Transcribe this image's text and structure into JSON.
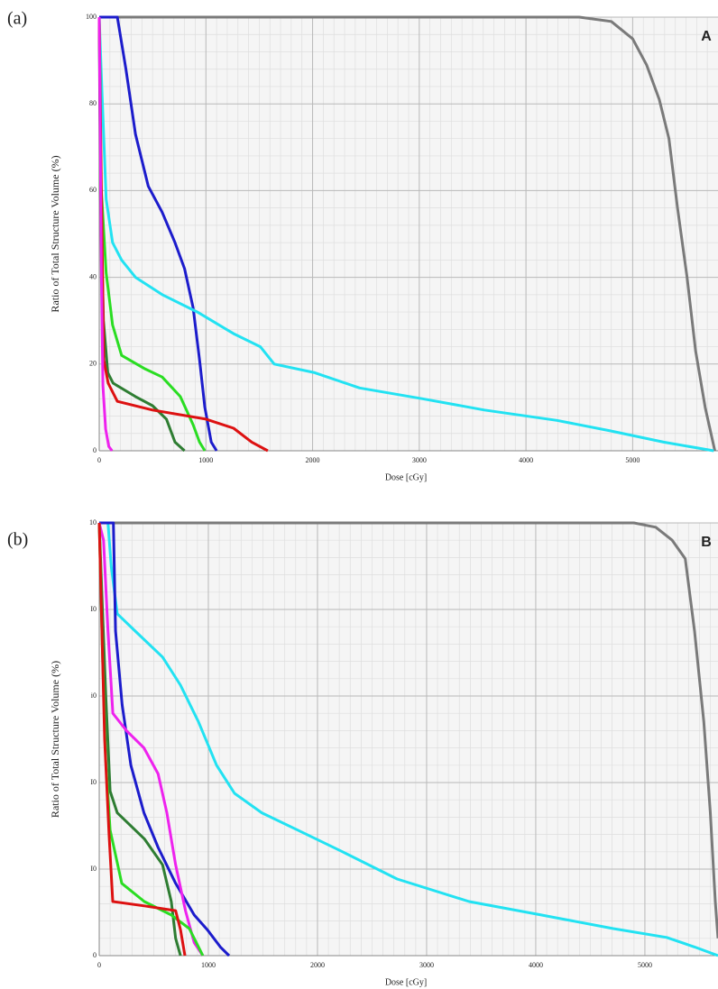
{
  "chart_data": [
    {
      "type": "line",
      "panel_label": "(a)",
      "annotation": "A",
      "xlabel": "Dose [cGy]",
      "ylabel": "Ratio of Total Structure Volume (%)",
      "xlim": [
        0,
        5800
      ],
      "ylim": [
        0,
        100
      ],
      "xticks": [
        0,
        1000,
        2000,
        3000,
        4000,
        5000
      ],
      "yticks": [
        0,
        20,
        40,
        60,
        80,
        100
      ],
      "grid": true,
      "series": [
        {
          "color": "#7a7a7a",
          "x": [
            0,
            4500,
            4800,
            5000,
            5130,
            5250,
            5340,
            5420,
            5510,
            5590,
            5680,
            5770
          ],
          "values": [
            100,
            100,
            99,
            95,
            89,
            81,
            72,
            56,
            40,
            23,
            10,
            0
          ]
        },
        {
          "color": "#1c1ccc",
          "x": [
            0,
            170,
            250,
            340,
            460,
            590,
            710,
            800,
            880,
            940,
            990,
            1050,
            1100
          ],
          "values": [
            100,
            100,
            88,
            73,
            61,
            55,
            48,
            42,
            33,
            21,
            10,
            2,
            0
          ]
        },
        {
          "color": "#22e2f2",
          "x": [
            0,
            25,
            65,
            125,
            210,
            340,
            590,
            920,
            1260,
            1510,
            1640,
            2020,
            2440,
            3030,
            3610,
            4290,
            4790,
            5290,
            5760
          ],
          "values": [
            100,
            83,
            58,
            48,
            44,
            40,
            36,
            32,
            27,
            24,
            20,
            18,
            14.5,
            12,
            9.4,
            7,
            4.6,
            2,
            0
          ]
        },
        {
          "color": "#2add22",
          "x": [
            0,
            15,
            65,
            125,
            210,
            420,
            590,
            760,
            880,
            940,
            990
          ],
          "values": [
            100,
            62,
            41,
            29,
            22,
            19,
            17,
            12.5,
            6,
            2,
            0
          ]
        },
        {
          "color": "#2e7d32",
          "x": [
            0,
            10,
            40,
            80,
            130,
            340,
            500,
            630,
            710,
            800
          ],
          "values": [
            100,
            60,
            30,
            18,
            15.6,
            12.5,
            10.4,
            7.3,
            2,
            0
          ]
        },
        {
          "color": "#dd1111",
          "x": [
            0,
            20,
            42,
            84,
            170,
            500,
            1000,
            1260,
            1430,
            1580
          ],
          "values": [
            100,
            60,
            21,
            15.6,
            11.4,
            9.4,
            7.3,
            5.2,
            2,
            0
          ]
        },
        {
          "color": "#ee22ee",
          "x": [
            0,
            10,
            20,
            35,
            60,
            90,
            120
          ],
          "values": [
            100,
            70,
            40,
            15,
            5,
            1,
            0
          ]
        }
      ]
    },
    {
      "type": "line",
      "panel_label": "(b)",
      "annotation": "B",
      "xlabel": "Dose [cGy]",
      "ylabel": "Ratio of Total Structure Volume (%)",
      "xlim": [
        0,
        5670
      ],
      "ylim": [
        0,
        100
      ],
      "xticks": [
        0,
        1000,
        2000,
        3000,
        4000,
        5000
      ],
      "yticks": [
        0,
        {
          "value": 20,
          "label": "I0"
        },
        {
          "value": 40,
          "label": "I0"
        },
        {
          "value": 60,
          "label": "i0"
        },
        {
          "value": 80,
          "label": "I0"
        },
        {
          "value": 100,
          "label": "10"
        }
      ],
      "grid": true,
      "series": [
        {
          "color": "#7a7a7a",
          "x": [
            0,
            4900,
            5100,
            5250,
            5370,
            5455,
            5540,
            5600,
            5645,
            5670
          ],
          "values": [
            100,
            100,
            99,
            96,
            91.7,
            75,
            54,
            33,
            12.5,
            4
          ]
        },
        {
          "color": "#22e2f2",
          "x": [
            0,
            80,
            110,
            165,
            330,
            580,
            745,
            910,
            1075,
            1240,
            1490,
            1820,
            2230,
            2730,
            3390,
            4050,
            4710,
            5200,
            5455,
            5670
          ],
          "values": [
            100,
            100,
            90,
            79,
            75,
            69,
            62.5,
            54,
            44,
            37.5,
            33,
            29,
            24,
            17.7,
            12.5,
            9.4,
            6.25,
            4.2,
            2,
            0
          ]
        },
        {
          "color": "#1c1ccc",
          "x": [
            0,
            130,
            150,
            210,
            290,
            410,
            540,
            700,
            870,
            990,
            1110,
            1190
          ],
          "values": [
            100,
            100,
            75,
            58,
            44,
            33,
            25,
            16.7,
            9.4,
            6,
            2,
            0
          ]
        },
        {
          "color": "#ee22ee",
          "x": [
            0,
            40,
            80,
            125,
            250,
            410,
            540,
            620,
            700,
            790,
            870,
            950
          ],
          "values": [
            100,
            96,
            75,
            56,
            52,
            48,
            42,
            33,
            21,
            10.4,
            3,
            0
          ]
        },
        {
          "color": "#2e7d32",
          "x": [
            0,
            30,
            60,
            100,
            165,
            413,
            580,
            660,
            700,
            745
          ],
          "values": [
            100,
            80,
            60,
            38,
            33,
            27,
            21,
            12.5,
            4,
            0
          ]
        },
        {
          "color": "#2add22",
          "x": [
            0,
            30,
            60,
            100,
            207,
            413,
            660,
            826,
            910,
            950
          ],
          "values": [
            100,
            70,
            45,
            29,
            16.7,
            12.5,
            9.4,
            6.25,
            2,
            0
          ]
        },
        {
          "color": "#dd1111",
          "x": [
            0,
            20,
            50,
            90,
            124,
            413,
            700,
            745,
            785
          ],
          "values": [
            100,
            80,
            50,
            28,
            12.5,
            11.5,
            10.4,
            6,
            0
          ]
        }
      ]
    }
  ]
}
